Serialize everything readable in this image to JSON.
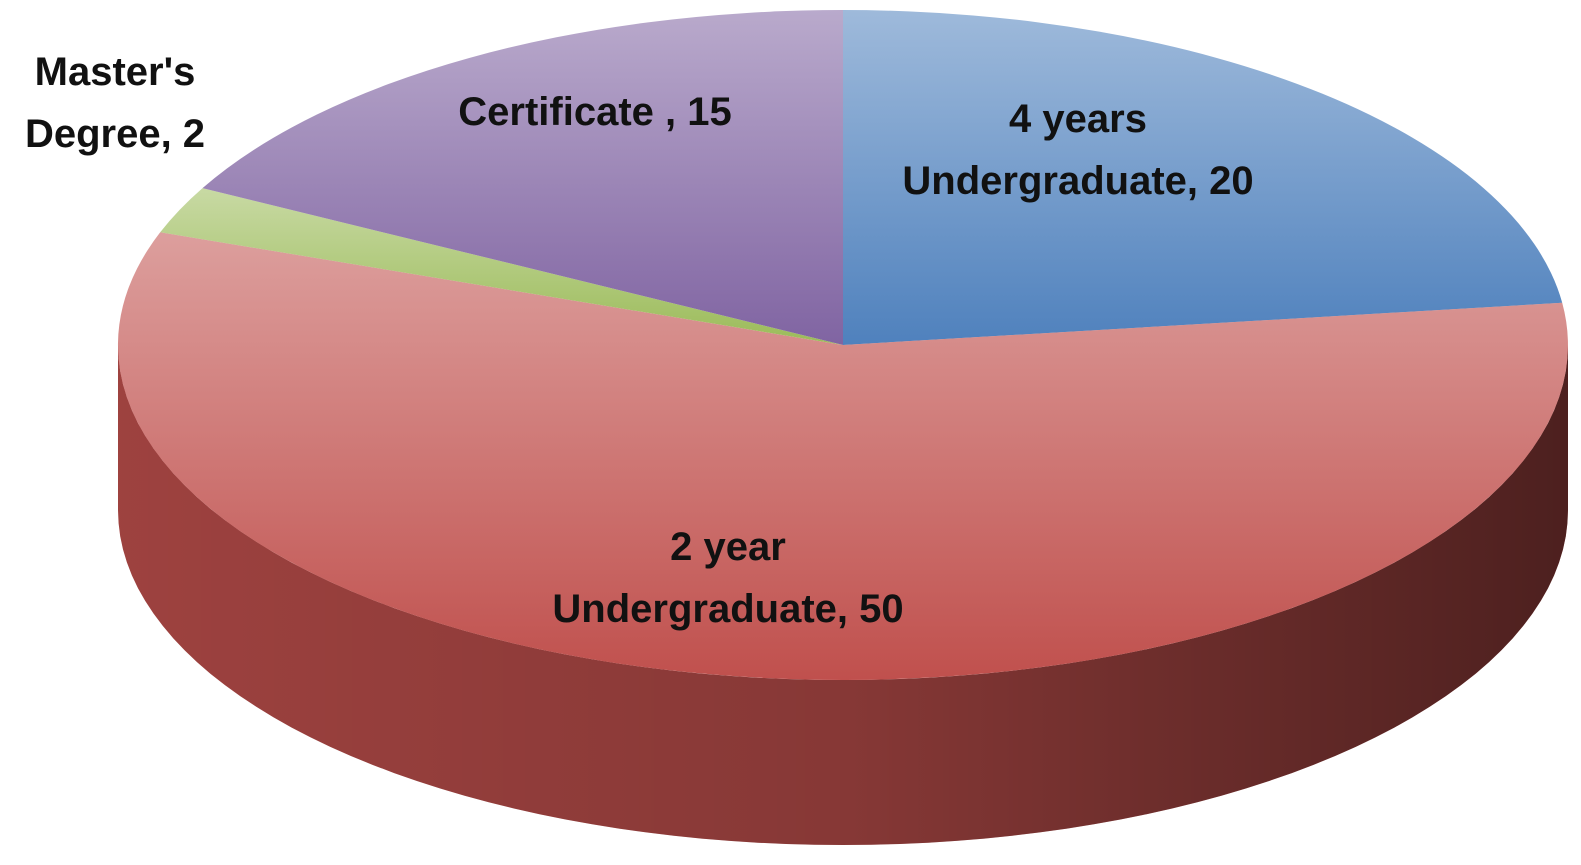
{
  "chart_data": {
    "type": "pie",
    "values": [
      20,
      50,
      2,
      15
    ],
    "value_labels": [
      "4 years Undergraduate, 20",
      "2 year Undergraduate, 50",
      "Master's Degree, 2",
      "Certificate , 15"
    ],
    "colors": [
      "#4f81bd",
      "#c0504d",
      "#9bbb59",
      "#8064a2"
    ],
    "start_angle": 0,
    "direction": "clockwise"
  }
}
